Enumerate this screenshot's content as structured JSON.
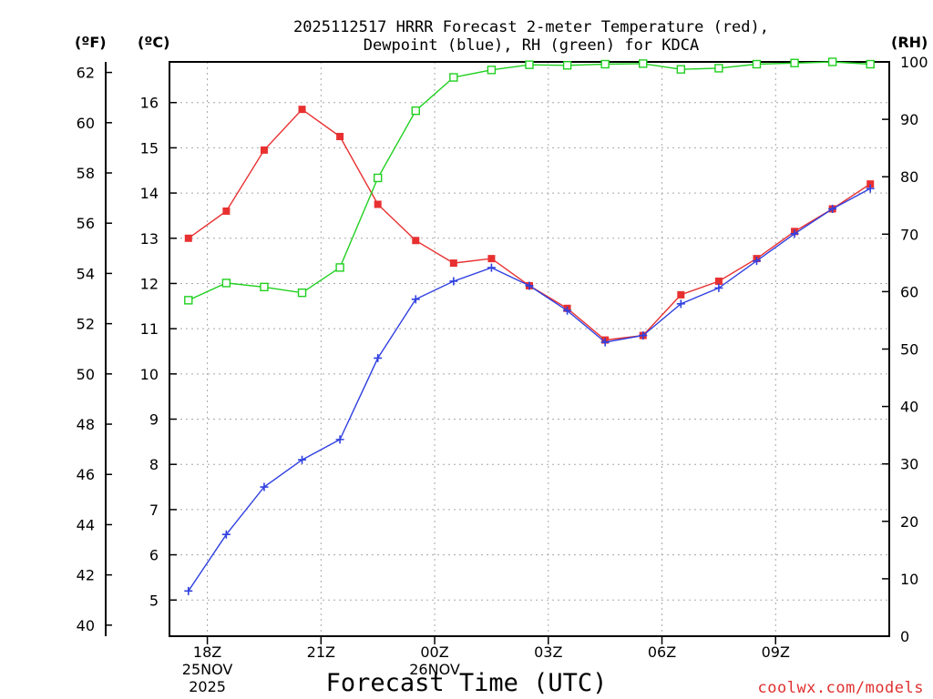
{
  "chart_data": {
    "type": "line",
    "title_lines": [
      "2025112517 HRRR Forecast 2-meter Temperature (red),",
      "Dewpoint (blue), RH (green) for KDCA"
    ],
    "xlabel": "Forecast Time (UTC)",
    "units": {
      "fahrenheit": "(ºF)",
      "celsius": "(ºC)",
      "rh": "(RH)"
    },
    "credit": "coolwx.com/models",
    "x_hours": [
      0,
      1,
      2,
      3,
      4,
      5,
      6,
      7,
      8,
      9,
      10,
      11,
      12,
      13,
      14,
      15,
      16,
      17,
      18
    ],
    "x_range": [
      -0.5,
      18.5
    ],
    "x_ticks": [
      {
        "hour": 0.5,
        "lines": [
          "18Z",
          "25NOV",
          "2025"
        ]
      },
      {
        "hour": 3.5,
        "lines": [
          "21Z"
        ]
      },
      {
        "hour": 6.5,
        "lines": [
          "00Z",
          "26NOV"
        ]
      },
      {
        "hour": 9.5,
        "lines": [
          "03Z"
        ]
      },
      {
        "hour": 12.5,
        "lines": [
          "06Z"
        ]
      },
      {
        "hour": 15.5,
        "lines": [
          "09Z"
        ]
      }
    ],
    "celsius_axis": {
      "range": [
        4.2,
        16.9
      ],
      "ticks": [
        5,
        6,
        7,
        8,
        9,
        10,
        11,
        12,
        13,
        14,
        15,
        16
      ]
    },
    "fahrenheit_axis": {
      "range": [
        39.56,
        62.42
      ],
      "ticks": [
        40,
        42,
        44,
        46,
        48,
        50,
        52,
        54,
        56,
        58,
        60,
        62
      ]
    },
    "rh_axis": {
      "range": [
        0,
        100
      ],
      "ticks": [
        0,
        10,
        20,
        30,
        40,
        50,
        60,
        70,
        80,
        90,
        100
      ]
    },
    "series": [
      {
        "name": "Temperature",
        "color": "#e83030",
        "marker": "filled-square",
        "axis": "celsius",
        "values": [
          13.0,
          13.6,
          14.95,
          15.85,
          15.25,
          13.75,
          12.95,
          12.45,
          12.55,
          11.95,
          11.45,
          10.75,
          10.85,
          11.75,
          12.05,
          12.55,
          13.15,
          13.65,
          14.2
        ]
      },
      {
        "name": "Dewpoint",
        "color": "#3040e0",
        "marker": "plus",
        "axis": "celsius",
        "values": [
          5.2,
          6.45,
          7.5,
          8.1,
          8.55,
          10.35,
          11.65,
          12.05,
          12.35,
          11.95,
          11.4,
          10.7,
          10.85,
          11.55,
          11.9,
          12.5,
          13.1,
          13.65,
          14.1
        ]
      },
      {
        "name": "RH",
        "color": "#20d020",
        "marker": "open-square",
        "axis": "rh",
        "values": [
          58.5,
          61.5,
          60.8,
          59.8,
          64.2,
          79.8,
          91.5,
          97.3,
          98.6,
          99.5,
          99.4,
          99.6,
          99.7,
          98.7,
          98.9,
          99.6,
          99.8,
          100,
          99.6
        ]
      }
    ]
  }
}
